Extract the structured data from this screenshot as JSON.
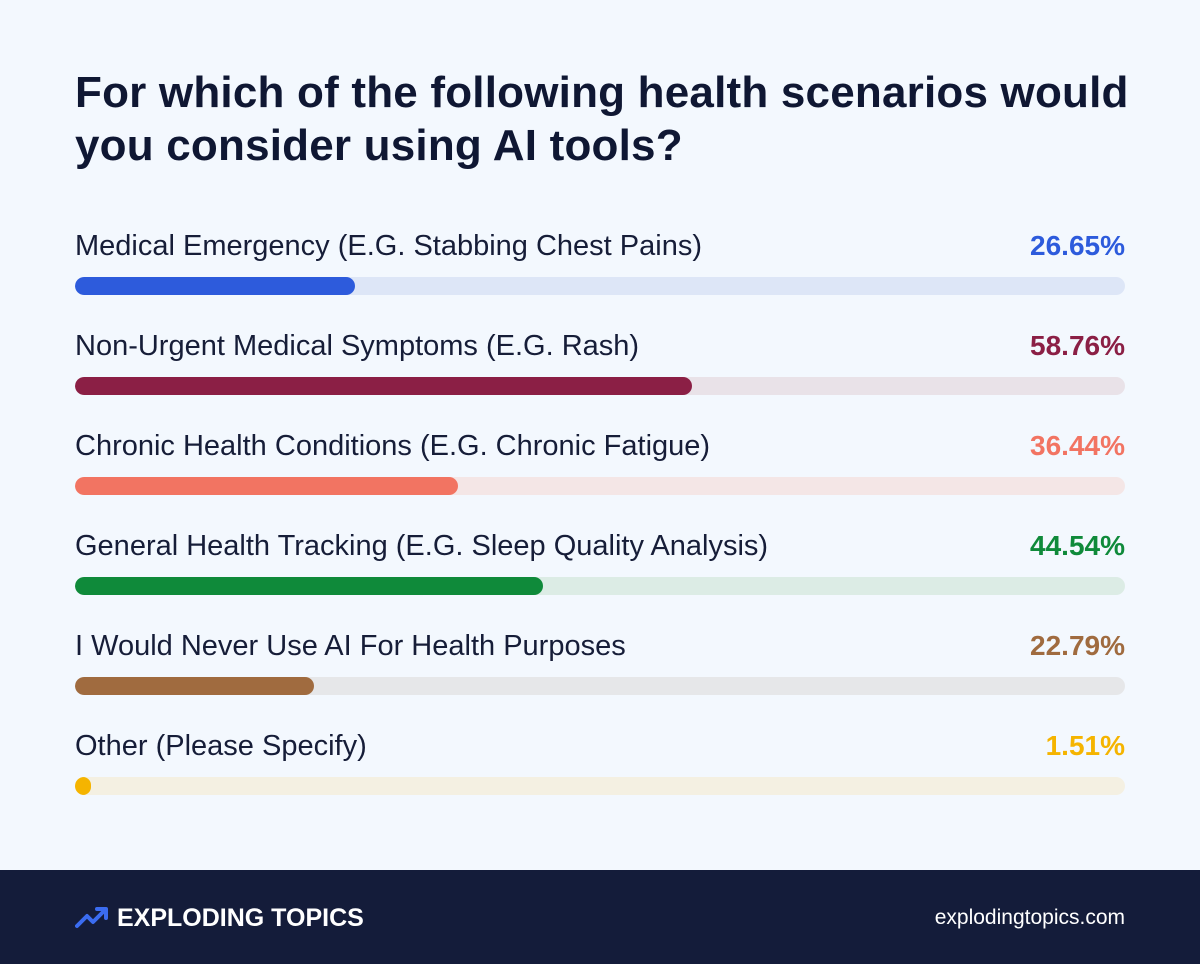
{
  "chart_data": {
    "type": "bar",
    "orientation": "horizontal",
    "title": "For which of the following health scenarios would you consider using AI tools?",
    "xlim": [
      0,
      100
    ],
    "categories": [
      "Medical Emergency (E.G. Stabbing Chest Pains)",
      "Non-Urgent Medical Symptoms (E.G. Rash)",
      "Chronic Health Conditions (E.G. Chronic Fatigue)",
      "General Health Tracking (E.G. Sleep Quality Analysis)",
      "I Would Never Use AI For Health Purposes",
      "Other (Please Specify)"
    ],
    "values": [
      26.65,
      58.76,
      36.44,
      44.54,
      22.79,
      1.51
    ],
    "value_labels": [
      "26.65%",
      "58.76%",
      "36.44%",
      "44.54%",
      "22.79%",
      "1.51%"
    ],
    "colors": [
      "#2d5bdc",
      "#8b1f45",
      "#f27462",
      "#0f8a3a",
      "#a06b3f",
      "#f5b400"
    ],
    "track_colors": [
      "#dde6f7",
      "#e9e2e8",
      "#f4e6e6",
      "#dcece5",
      "#e6e7e9",
      "#f4f0e2"
    ]
  },
  "footer": {
    "brand": "EXPLODING TOPICS",
    "brand_icon": "trending-arrow-icon",
    "site": "explodingtopics.com"
  }
}
